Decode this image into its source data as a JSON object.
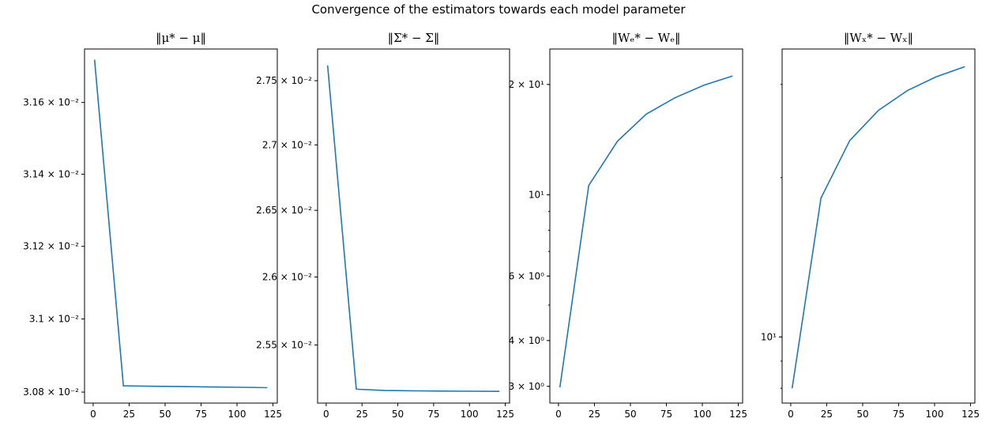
{
  "figure": {
    "suptitle": "Convergence of the estimators towards each model parameter"
  },
  "colors": {
    "series": "#1f77b4",
    "axis": "#000000",
    "background": "#ffffff"
  },
  "chart_data": [
    {
      "type": "line",
      "title": "‖μ* − μ‖",
      "yscale": "log",
      "xlim": [
        -6,
        128
      ],
      "ylim": [
        0.03077,
        0.03175
      ],
      "xticks": [
        0,
        25,
        50,
        75,
        100,
        125
      ],
      "yticks": [
        {
          "value": 0.0308,
          "label": "3.08 × 10⁻²"
        },
        {
          "value": 0.031,
          "label": "3.1 × 10⁻²"
        },
        {
          "value": 0.0312,
          "label": "3.12 × 10⁻²"
        },
        {
          "value": 0.0314,
          "label": "3.14 × 10⁻²"
        },
        {
          "value": 0.0316,
          "label": "3.16 × 10⁻²"
        }
      ],
      "x": [
        1,
        21,
        41,
        61,
        81,
        101,
        121
      ],
      "y": [
        0.03172,
        0.030817,
        0.030816,
        0.030815,
        0.030814,
        0.030813,
        0.030812
      ]
    },
    {
      "type": "line",
      "title": "‖Σ* − Σ‖",
      "yscale": "log",
      "xlim": [
        -6,
        128
      ],
      "ylim": [
        0.02508,
        0.02775
      ],
      "xticks": [
        0,
        25,
        50,
        75,
        100,
        125
      ],
      "yticks": [
        {
          "value": 0.0255,
          "label": "2.55 × 10⁻²"
        },
        {
          "value": 0.026,
          "label": "2.6 × 10⁻²"
        },
        {
          "value": 0.0265,
          "label": "2.65 × 10⁻²"
        },
        {
          "value": 0.027,
          "label": "2.7 × 10⁻²"
        },
        {
          "value": 0.0275,
          "label": "2.75 × 10⁻²"
        }
      ],
      "x": [
        1,
        21,
        41,
        61,
        81,
        101,
        121
      ],
      "y": [
        0.02762,
        0.02518,
        0.02517,
        0.025168,
        0.025166,
        0.025165,
        0.025164
      ]
    },
    {
      "type": "line",
      "title": "‖Wₑ* − Wₑ‖",
      "yscale": "log",
      "xlim": [
        -6,
        128
      ],
      "ylim": [
        2.7,
        25
      ],
      "xticks": [
        0,
        25,
        50,
        75,
        100,
        125
      ],
      "yticks": [
        {
          "value": 3,
          "label": "3 × 10⁰"
        },
        {
          "value": 4,
          "label": "4 × 10⁰"
        },
        {
          "value": 6,
          "label": "6 × 10⁰"
        },
        {
          "value": 10,
          "label": "10¹"
        },
        {
          "value": 20,
          "label": "2 × 10¹"
        }
      ],
      "x": [
        1,
        21,
        41,
        61,
        81,
        101,
        121
      ],
      "y": [
        2.98,
        10.6,
        14.0,
        16.6,
        18.4,
        19.9,
        21.1
      ]
    },
    {
      "type": "line",
      "title": "‖Wₓ* − Wₓ‖",
      "yscale": "log",
      "xlim": [
        -6,
        128
      ],
      "ylim": [
        7.5,
        35
      ],
      "xticks": [
        0,
        25,
        50,
        75,
        100,
        125
      ],
      "yticks": [
        {
          "value": 10,
          "label": "10¹"
        }
      ],
      "x": [
        1,
        21,
        41,
        61,
        81,
        101,
        121
      ],
      "y": [
        8.0,
        18.3,
        23.5,
        26.8,
        29.2,
        31.0,
        32.4
      ]
    }
  ]
}
